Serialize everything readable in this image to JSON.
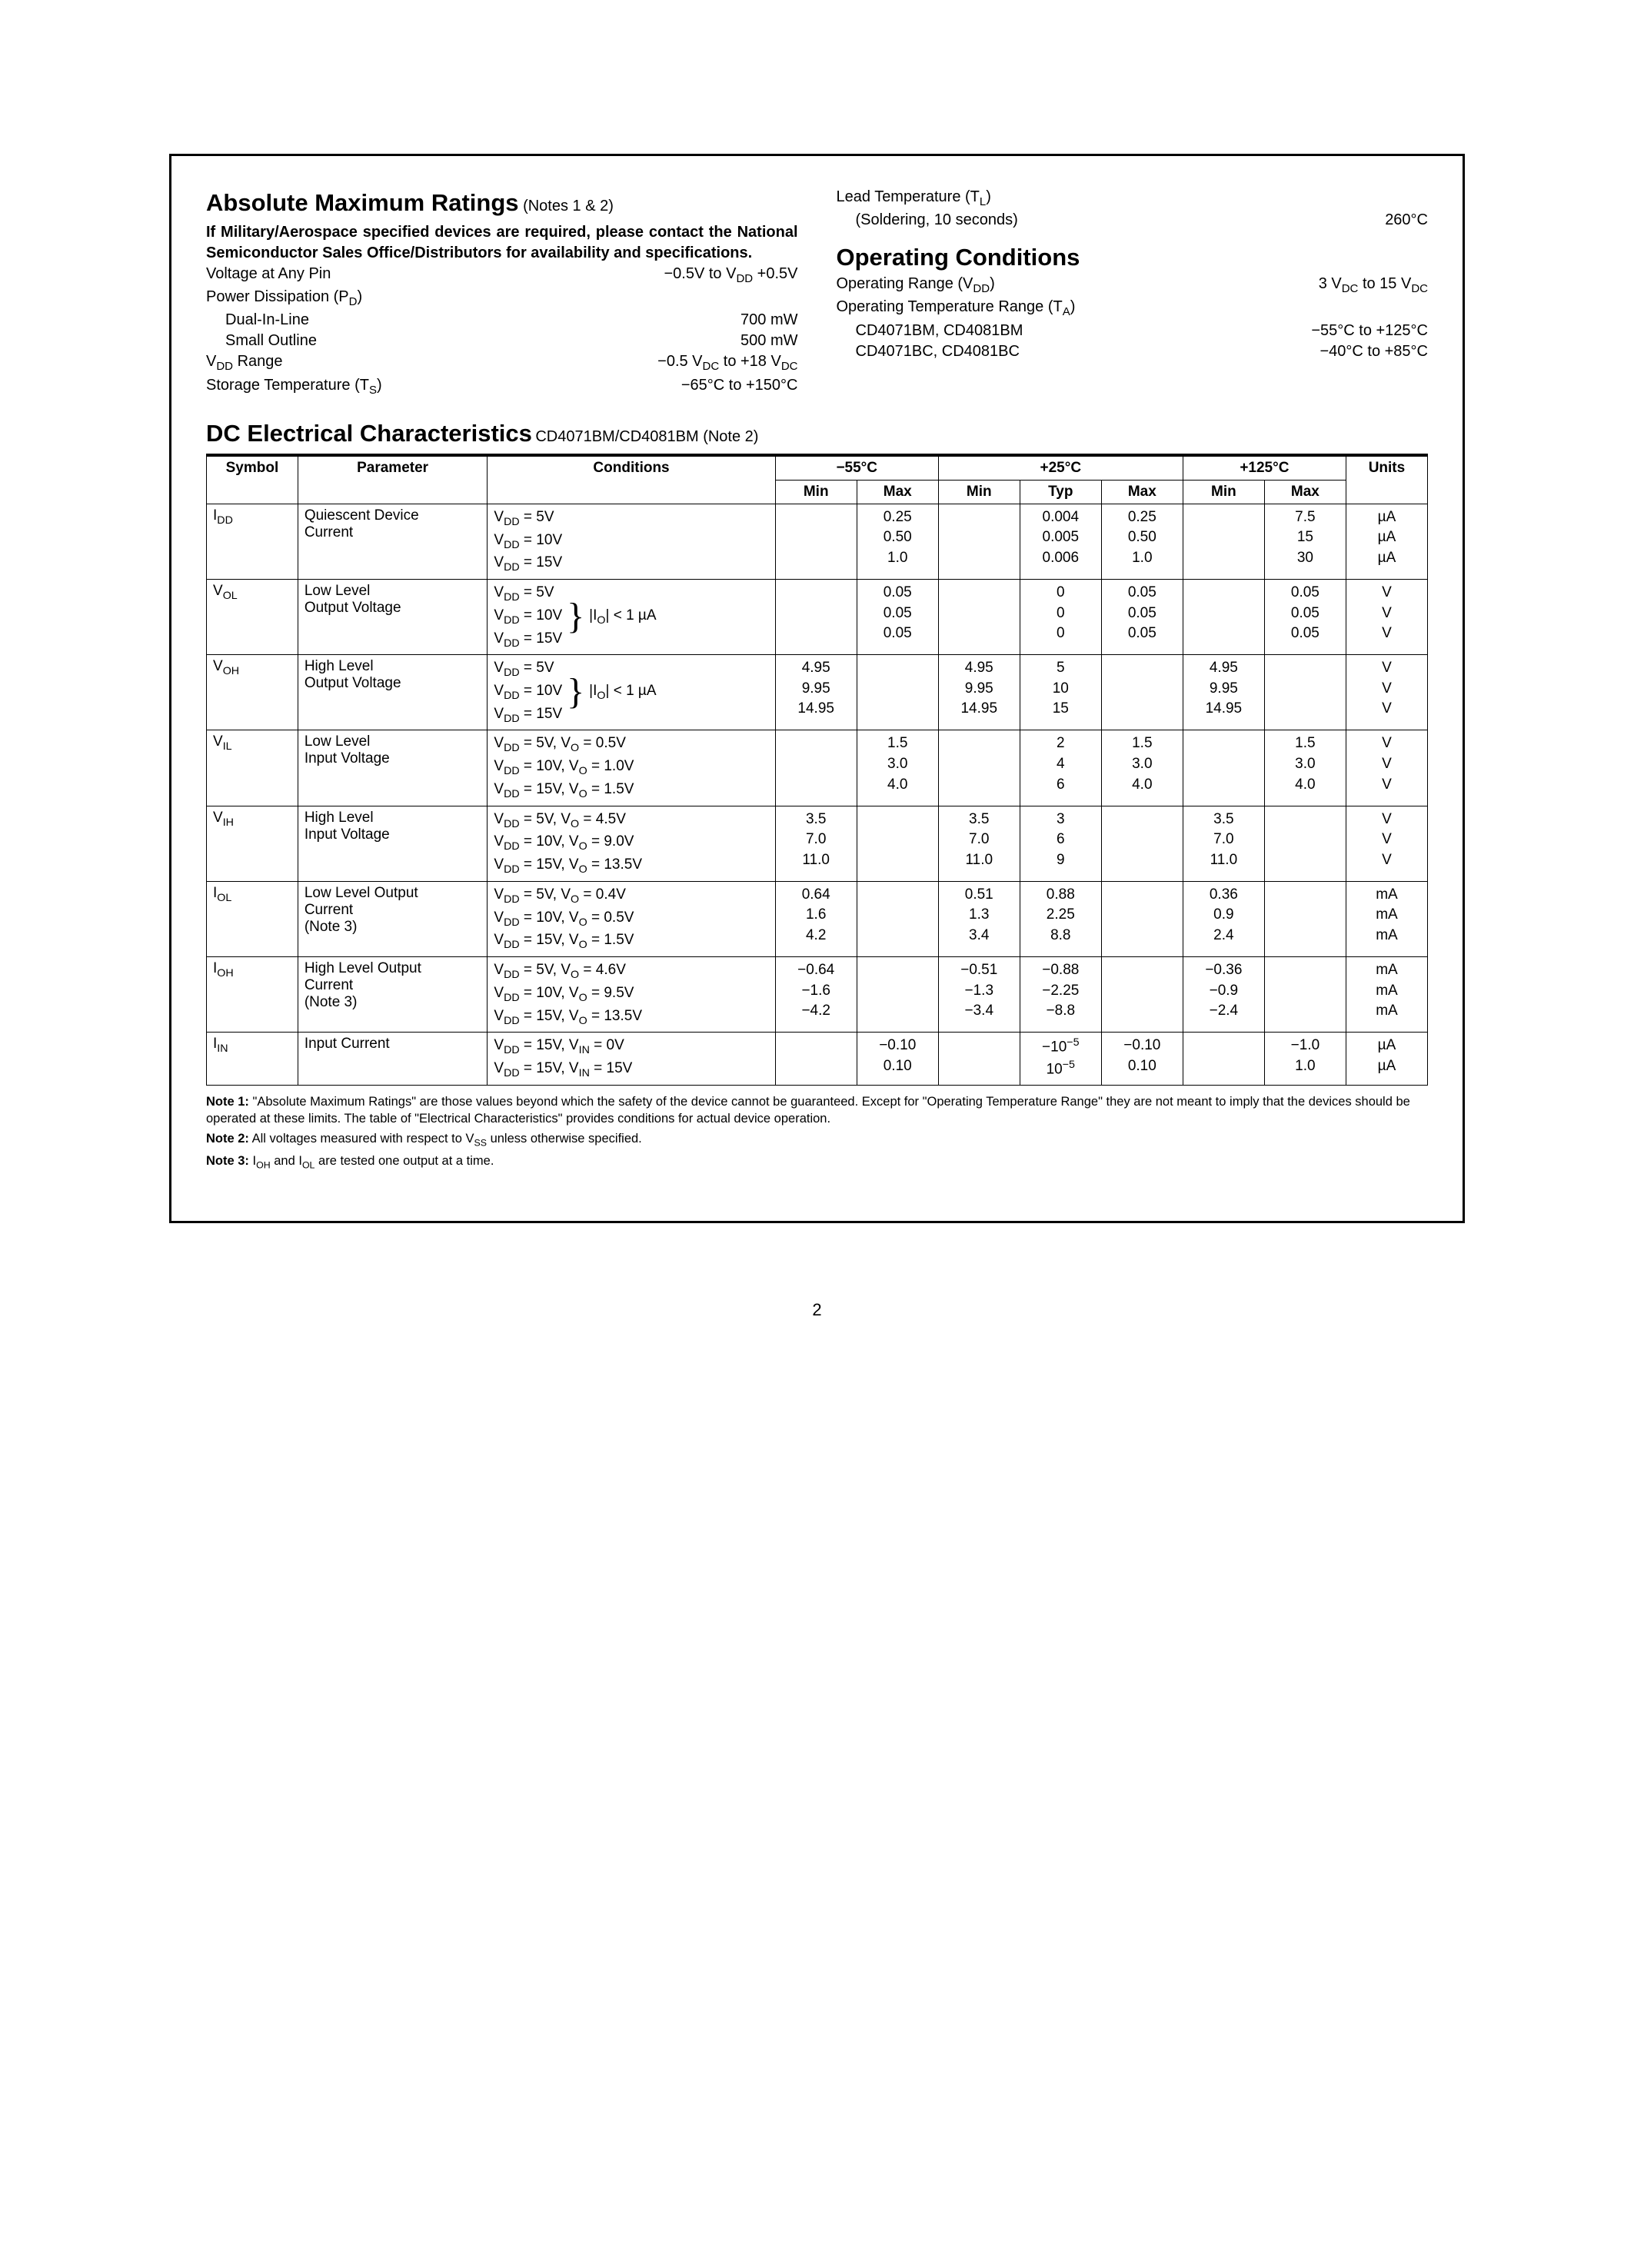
{
  "section1": {
    "title": "Absolute Maximum Ratings",
    "title_note": "(Notes 1 & 2)",
    "military_note": "If Military/Aerospace specified devices are required, please contact the National Semiconductor Sales Office/Distributors for availability and specifications.",
    "left_specs": [
      {
        "label": "Voltage at Any Pin",
        "value": "−0.5V to V_DD +0.5V"
      },
      {
        "label": "Power Dissipation (P_D)",
        "value": ""
      },
      {
        "label": "Dual-In-Line",
        "value": "700 mW",
        "indent": true
      },
      {
        "label": "Small Outline",
        "value": "500 mW",
        "indent": true
      },
      {
        "label": "V_DD Range",
        "value": "−0.5 V_DC to +18 V_DC"
      },
      {
        "label": "Storage Temperature (T_S)",
        "value": "−65°C to +150°C"
      }
    ],
    "right_specs": [
      {
        "label": "Lead Temperature (T_L)",
        "value": ""
      },
      {
        "label": "(Soldering, 10 seconds)",
        "value": "260°C",
        "indent": true
      }
    ]
  },
  "section2": {
    "title": "Operating Conditions",
    "specs": [
      {
        "label": "Operating Range (V_DD)",
        "value": "3 V_DC to 15 V_DC"
      },
      {
        "label": "Operating Temperature Range (T_A)",
        "value": ""
      },
      {
        "label": "CD4071BM, CD4081BM",
        "value": "−55°C to +125°C",
        "indent": true
      },
      {
        "label": "CD4071BC, CD4081BC",
        "value": "−40°C to +85°C",
        "indent": true
      }
    ]
  },
  "section3": {
    "title": "DC Electrical Characteristics",
    "title_note": "CD4071BM/CD4081BM (Note 2)",
    "headers": {
      "symbol": "Symbol",
      "parameter": "Parameter",
      "conditions": "Conditions",
      "temp1": "−55°C",
      "temp2": "+25°C",
      "temp3": "+125°C",
      "units": "Units",
      "min": "Min",
      "max": "Max",
      "typ": "Typ"
    },
    "rows": [
      {
        "symbol": "I_DD",
        "parameter": "Quiescent Device Current",
        "conditions": [
          "V_DD = 5V",
          "V_DD = 10V",
          "V_DD = 15V"
        ],
        "t1min": [
          "",
          "",
          ""
        ],
        "t1max": [
          "0.25",
          "0.50",
          "1.0"
        ],
        "t2min": [
          "",
          "",
          ""
        ],
        "t2typ": [
          "0.004",
          "0.005",
          "0.006"
        ],
        "t2max": [
          "0.25",
          "0.50",
          "1.0"
        ],
        "t3min": [
          "",
          "",
          ""
        ],
        "t3max": [
          "7.5",
          "15",
          "30"
        ],
        "units": [
          "µA",
          "µA",
          "µA"
        ]
      },
      {
        "symbol": "V_OL",
        "parameter": "Low Level Output Voltage",
        "conditions_brace": {
          "lines": [
            "V_DD = 5V",
            "V_DD = 10V",
            "V_DD = 15V"
          ],
          "side": "|I_O| < 1 µA"
        },
        "t1min": [
          "",
          "",
          ""
        ],
        "t1max": [
          "0.05",
          "0.05",
          "0.05"
        ],
        "t2min": [
          "",
          "",
          ""
        ],
        "t2typ": [
          "0",
          "0",
          "0"
        ],
        "t2max": [
          "0.05",
          "0.05",
          "0.05"
        ],
        "t3min": [
          "",
          "",
          ""
        ],
        "t3max": [
          "0.05",
          "0.05",
          "0.05"
        ],
        "units": [
          "V",
          "V",
          "V"
        ]
      },
      {
        "symbol": "V_OH",
        "parameter": "High Level Output Voltage",
        "conditions_brace": {
          "lines": [
            "V_DD = 5V",
            "V_DD = 10V",
            "V_DD = 15V"
          ],
          "side": "|I_O| < 1 µA"
        },
        "t1min": [
          "4.95",
          "9.95",
          "14.95"
        ],
        "t1max": [
          "",
          "",
          ""
        ],
        "t2min": [
          "4.95",
          "9.95",
          "14.95"
        ],
        "t2typ": [
          "5",
          "10",
          "15"
        ],
        "t2max": [
          "",
          "",
          ""
        ],
        "t3min": [
          "4.95",
          "9.95",
          "14.95"
        ],
        "t3max": [
          "",
          "",
          ""
        ],
        "units": [
          "V",
          "V",
          "V"
        ]
      },
      {
        "symbol": "V_IL",
        "parameter": "Low Level Input Voltage",
        "conditions": [
          "V_DD = 5V, V_O = 0.5V",
          "V_DD = 10V, V_O = 1.0V",
          "V_DD = 15V, V_O = 1.5V"
        ],
        "t1min": [
          "",
          "",
          ""
        ],
        "t1max": [
          "1.5",
          "3.0",
          "4.0"
        ],
        "t2min": [
          "",
          "",
          ""
        ],
        "t2typ": [
          "2",
          "4",
          "6"
        ],
        "t2max": [
          "1.5",
          "3.0",
          "4.0"
        ],
        "t3min": [
          "",
          "",
          ""
        ],
        "t3max": [
          "1.5",
          "3.0",
          "4.0"
        ],
        "units": [
          "V",
          "V",
          "V"
        ]
      },
      {
        "symbol": "V_IH",
        "parameter": "High Level Input Voltage",
        "conditions": [
          "V_DD = 5V, V_O = 4.5V",
          "V_DD = 10V, V_O = 9.0V",
          "V_DD = 15V, V_O = 13.5V"
        ],
        "t1min": [
          "3.5",
          "7.0",
          "11.0"
        ],
        "t1max": [
          "",
          "",
          ""
        ],
        "t2min": [
          "3.5",
          "7.0",
          "11.0"
        ],
        "t2typ": [
          "3",
          "6",
          "9"
        ],
        "t2max": [
          "",
          "",
          ""
        ],
        "t3min": [
          "3.5",
          "7.0",
          "11.0"
        ],
        "t3max": [
          "",
          "",
          ""
        ],
        "units": [
          "V",
          "V",
          "V"
        ]
      },
      {
        "symbol": "I_OL",
        "parameter": "Low Level Output Current (Note 3)",
        "conditions": [
          "V_DD = 5V, V_O = 0.4V",
          "V_DD = 10V, V_O = 0.5V",
          "V_DD = 15V, V_O = 1.5V"
        ],
        "t1min": [
          "0.64",
          "1.6",
          "4.2"
        ],
        "t1max": [
          "",
          "",
          ""
        ],
        "t2min": [
          "0.51",
          "1.3",
          "3.4"
        ],
        "t2typ": [
          "0.88",
          "2.25",
          "8.8"
        ],
        "t2max": [
          "",
          "",
          ""
        ],
        "t3min": [
          "0.36",
          "0.9",
          "2.4"
        ],
        "t3max": [
          "",
          "",
          ""
        ],
        "units": [
          "mA",
          "mA",
          "mA"
        ]
      },
      {
        "symbol": "I_OH",
        "parameter": "High Level Output Current (Note 3)",
        "conditions": [
          "V_DD = 5V, V_O = 4.6V",
          "V_DD = 10V, V_O = 9.5V",
          "V_DD = 15V, V_O = 13.5V"
        ],
        "t1min": [
          "−0.64",
          "−1.6",
          "−4.2"
        ],
        "t1max": [
          "",
          "",
          ""
        ],
        "t2min": [
          "−0.51",
          "−1.3",
          "−3.4"
        ],
        "t2typ": [
          "−0.88",
          "−2.25",
          "−8.8"
        ],
        "t2max": [
          "",
          "",
          ""
        ],
        "t3min": [
          "−0.36",
          "−0.9",
          "−2.4"
        ],
        "t3max": [
          "",
          "",
          ""
        ],
        "units": [
          "mA",
          "mA",
          "mA"
        ]
      },
      {
        "symbol": "I_IN",
        "parameter": "Input Current",
        "conditions": [
          "V_DD = 15V, V_IN = 0V",
          "V_DD = 15V, V_IN = 15V"
        ],
        "t1min": [
          "",
          ""
        ],
        "t1max": [
          "−0.10",
          "0.10"
        ],
        "t2min": [
          "",
          ""
        ],
        "t2typ": [
          "−10^−5",
          "10^−5"
        ],
        "t2max": [
          "−0.10",
          "0.10"
        ],
        "t3min": [
          "",
          ""
        ],
        "t3max": [
          "−1.0",
          "1.0"
        ],
        "units": [
          "µA",
          "µA"
        ]
      }
    ],
    "notes": [
      {
        "label": "Note 1:",
        "text": "\"Absolute Maximum Ratings\" are those values beyond which the safety of the device cannot be guaranteed. Except for \"Operating Temperature Range\" they are not meant to imply that the devices should be operated at these limits. The table of \"Electrical Characteristics\" provides conditions for actual device operation."
      },
      {
        "label": "Note 2:",
        "text": "All voltages measured with respect to V_SS unless otherwise specified."
      },
      {
        "label": "Note 3:",
        "text": "I_OH and I_OL are tested one output at a time."
      }
    ]
  },
  "page_number": "2",
  "style": {
    "background": "#ffffff",
    "border_color": "#000000",
    "title_fontsize": 31,
    "body_fontsize": 20,
    "table_fontsize": 19,
    "note_fontsize": 16.5
  }
}
